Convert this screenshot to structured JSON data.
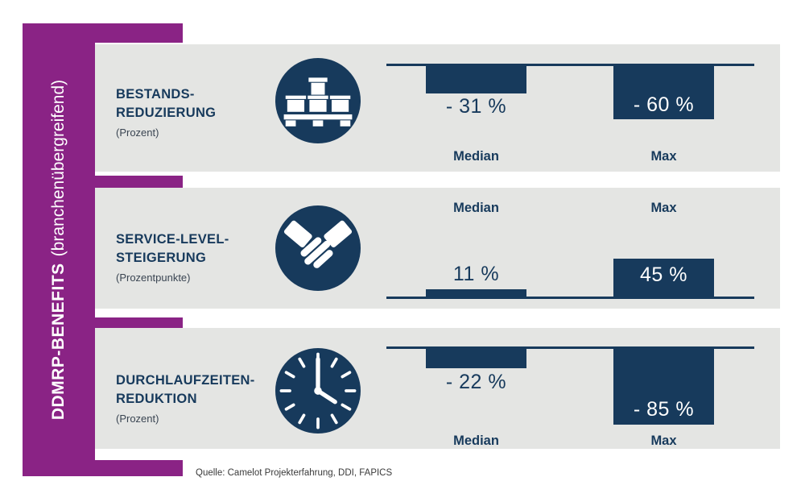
{
  "sidebar": {
    "title_bold": "DDMRP-BENEFITS",
    "title_regular": "(branchenübergreifend)"
  },
  "source": "Quelle: Camelot Projekterfahrung, DDI, FAPICS",
  "colors": {
    "purple": "#8A2385",
    "navy": "#173A5C",
    "panel_gray": "#E4E5E3"
  },
  "panels": [
    {
      "title_line1": "BESTANDS-",
      "title_line2": "REDUZIERUNG",
      "unit": "(Prozent)",
      "icon": "pallet-boxes-icon"
    },
    {
      "title_line1": "SERVICE-LEVEL-",
      "title_line2": "STEIGERUNG",
      "unit": "(Prozentpunkte)",
      "icon": "handshake-icon"
    },
    {
      "title_line1": "DURCHLAUFZEITEN-",
      "title_line2": "REDUKTION",
      "unit": "(Prozent)",
      "icon": "clock-icon"
    }
  ],
  "chart_data": [
    {
      "type": "bar",
      "title": "Bestandsreduzierung (Prozent)",
      "categories": [
        "Median",
        "Max"
      ],
      "values": [
        -31,
        -60
      ],
      "value_labels": [
        "- 31 %",
        "- 60 %"
      ],
      "bar_direction": "down from baseline",
      "legend_position": "labels below bars"
    },
    {
      "type": "bar",
      "title": "Service-Level-Steigerung (Prozentpunkte)",
      "categories": [
        "Median",
        "Max"
      ],
      "values": [
        11,
        45
      ],
      "value_labels": [
        "11 %",
        "45 %"
      ],
      "bar_direction": "up from baseline",
      "legend_position": "labels above bars"
    },
    {
      "type": "bar",
      "title": "Durchlaufzeiten-Reduktion (Prozent)",
      "categories": [
        "Median",
        "Max"
      ],
      "values": [
        -22,
        -85
      ],
      "value_labels": [
        "- 22 %",
        "- 85 %"
      ],
      "bar_direction": "down from baseline",
      "legend_position": "labels below bars"
    }
  ]
}
